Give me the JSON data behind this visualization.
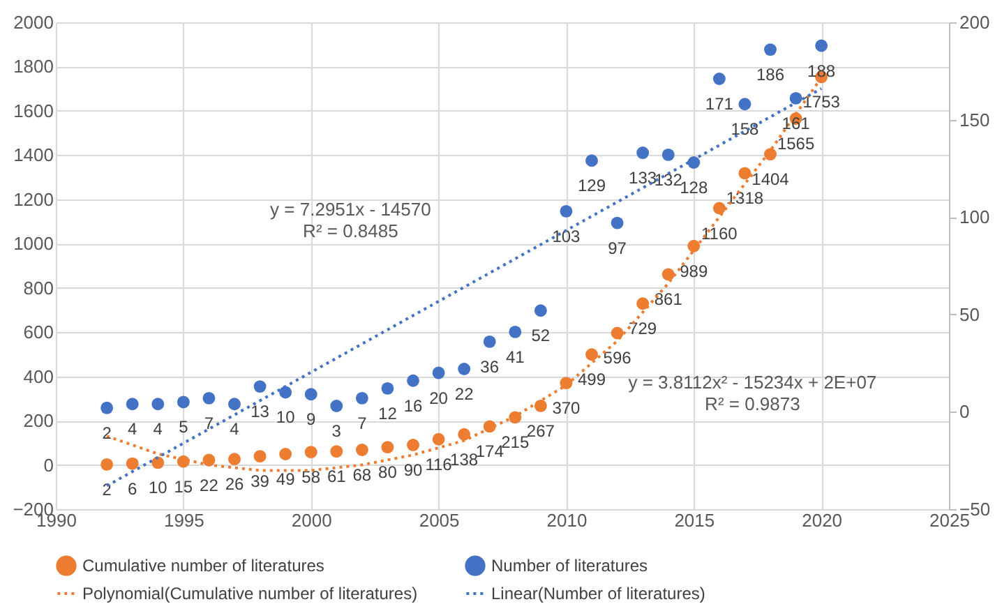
{
  "chart_data": {
    "type": "scatter",
    "xlim": [
      1990,
      2025
    ],
    "xticks": [
      1990,
      1995,
      2000,
      2005,
      2010,
      2015,
      2020,
      2025
    ],
    "ylim": [
      -200,
      2000
    ],
    "yticks": [
      -200,
      0,
      200,
      400,
      600,
      800,
      1000,
      1200,
      1400,
      1600,
      1800,
      2000
    ],
    "y2lim": [
      -50,
      200
    ],
    "y2ticks": [
      -50,
      0,
      50,
      100,
      150,
      200
    ],
    "grid": true,
    "legend": "bottom",
    "marker": "circle",
    "series": [
      {
        "name": "Cumulative number of literatures",
        "color": "#ed7d31",
        "x": [
          1992,
          1993,
          1994,
          1995,
          1996,
          1997,
          1998,
          1999,
          2000,
          2001,
          2002,
          2003,
          2004,
          2005,
          2006,
          2007,
          2008,
          2009,
          2010,
          2011,
          2012,
          2013,
          2014,
          2015,
          2016,
          2017,
          2018,
          2019,
          2020
        ],
        "values": [
          2,
          6,
          10,
          15,
          22,
          26,
          39,
          49,
          58,
          61,
          68,
          80,
          90,
          116,
          138,
          174,
          215,
          267,
          370,
          499,
          596,
          729,
          861,
          989,
          1160,
          1318,
          1404,
          1565,
          1753
        ],
        "value_labels": [
          "2",
          "6",
          "10",
          "15",
          "22",
          "26",
          "39",
          "49",
          "58",
          "61",
          "68",
          "80",
          "90",
          "116",
          "138",
          "174",
          "215",
          "267",
          "370",
          "499",
          "596",
          "729",
          "861",
          "989",
          "1160",
          "1318",
          "1404",
          "1565",
          "1753"
        ]
      },
      {
        "name": "Number of literatures",
        "axis": "y2",
        "color": "#4472c4",
        "x": [
          1992,
          1993,
          1994,
          1995,
          1996,
          1997,
          1998,
          1999,
          2000,
          2001,
          2002,
          2003,
          2004,
          2005,
          2006,
          2007,
          2008,
          2009,
          2010,
          2011,
          2012,
          2013,
          2014,
          2015,
          2016,
          2017,
          2018,
          2019,
          2020
        ],
        "values": [
          2,
          4,
          4,
          5,
          7,
          4,
          13,
          10,
          9,
          3,
          7,
          12,
          16,
          20,
          22,
          36,
          41,
          52,
          103,
          129,
          97,
          133,
          132,
          128,
          171,
          158,
          186,
          161,
          188
        ],
        "value_labels": [
          "2",
          "4",
          "4",
          "5",
          "7",
          "4",
          "13",
          "10",
          "9",
          "3",
          "7",
          "12",
          "16",
          "20",
          "22",
          "36",
          "41",
          "52",
          "103",
          "129",
          "97",
          "133",
          "132",
          "128",
          "171",
          "158",
          "186",
          "161",
          "188"
        ]
      },
      {
        "name": "Polynomial(Cumulative number of literatures)",
        "type": "line",
        "marker": "none",
        "line_style": "dotted",
        "color": "#ed7d31",
        "x": [
          1992,
          1994,
          1996,
          1998,
          2000,
          2002,
          2004,
          2006,
          2008,
          2010,
          2012,
          2014,
          2016,
          2018,
          2020
        ],
        "values": [
          130,
          50,
          0,
          -25,
          -25,
          0,
          45,
          110,
          220,
          360,
          560,
          820,
          1120,
          1420,
          1750
        ]
      },
      {
        "name": "Linear(Number of literatures)",
        "type": "line",
        "marker": "none",
        "line_style": "dotted",
        "axis": "y2",
        "color": "#4472c4",
        "x": [
          1992,
          2020
        ],
        "values": [
          -38,
          166
        ]
      }
    ],
    "annotations": [
      "y = 7.2951x - 14570",
      "R² = 0.8485",
      "y = 3.8112x² - 15234x + 2E+07",
      "R² = 0.9873"
    ]
  }
}
